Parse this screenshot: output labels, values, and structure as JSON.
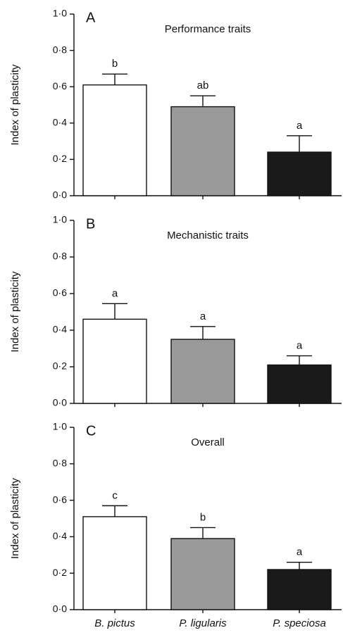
{
  "chart_data": [
    {
      "type": "bar",
      "panel": "A",
      "title": "Performance traits",
      "ylabel": "Index of plasticity",
      "categories": [
        null,
        null,
        null
      ],
      "values": [
        0.61,
        0.49,
        0.24
      ],
      "errors": [
        0.06,
        0.06,
        0.09
      ],
      "annotations": [
        "b",
        "ab",
        "a"
      ],
      "colors": [
        "#ffffff",
        "#9a9a9a",
        "#1a1a1a"
      ],
      "ylim": [
        0,
        1
      ],
      "yticks": [
        {
          "value": 0,
          "label": "0·0"
        },
        {
          "value": 0.2,
          "label": "0·2"
        },
        {
          "value": 0.4,
          "label": "0·4"
        },
        {
          "value": 0.6,
          "label": "0·6"
        },
        {
          "value": 0.8,
          "label": "0·8"
        },
        {
          "value": 1,
          "label": "1·0"
        }
      ]
    },
    {
      "type": "bar",
      "panel": "B",
      "title": "Mechanistic traits",
      "ylabel": "Index of plasticity",
      "categories": [
        null,
        null,
        null
      ],
      "values": [
        0.46,
        0.35,
        0.21
      ],
      "errors": [
        0.085,
        0.07,
        0.05
      ],
      "annotations": [
        "a",
        "a",
        "a"
      ],
      "colors": [
        "#ffffff",
        "#9a9a9a",
        "#1a1a1a"
      ],
      "ylim": [
        0,
        1
      ],
      "yticks": [
        {
          "value": 0,
          "label": "0·0"
        },
        {
          "value": 0.2,
          "label": "0·2"
        },
        {
          "value": 0.4,
          "label": "0·4"
        },
        {
          "value": 0.6,
          "label": "0·6"
        },
        {
          "value": 0.8,
          "label": "0·8"
        },
        {
          "value": 1,
          "label": "1·0"
        }
      ]
    },
    {
      "type": "bar",
      "panel": "C",
      "title": "Overall",
      "ylabel": "Index of plasticity",
      "categories": [
        "B. pictus",
        "P. ligularis",
        "P. speciosa"
      ],
      "values": [
        0.51,
        0.39,
        0.22
      ],
      "errors": [
        0.06,
        0.06,
        0.04
      ],
      "annotations": [
        "c",
        "b",
        "a"
      ],
      "colors": [
        "#ffffff",
        "#9a9a9a",
        "#1a1a1a"
      ],
      "ylim": [
        0,
        1
      ],
      "yticks": [
        {
          "value": 0,
          "label": "0·0"
        },
        {
          "value": 0.2,
          "label": "0·2"
        },
        {
          "value": 0.4,
          "label": "0·4"
        },
        {
          "value": 0.6,
          "label": "0·6"
        },
        {
          "value": 0.8,
          "label": "0·8"
        },
        {
          "value": 1,
          "label": "1·0"
        }
      ]
    }
  ]
}
